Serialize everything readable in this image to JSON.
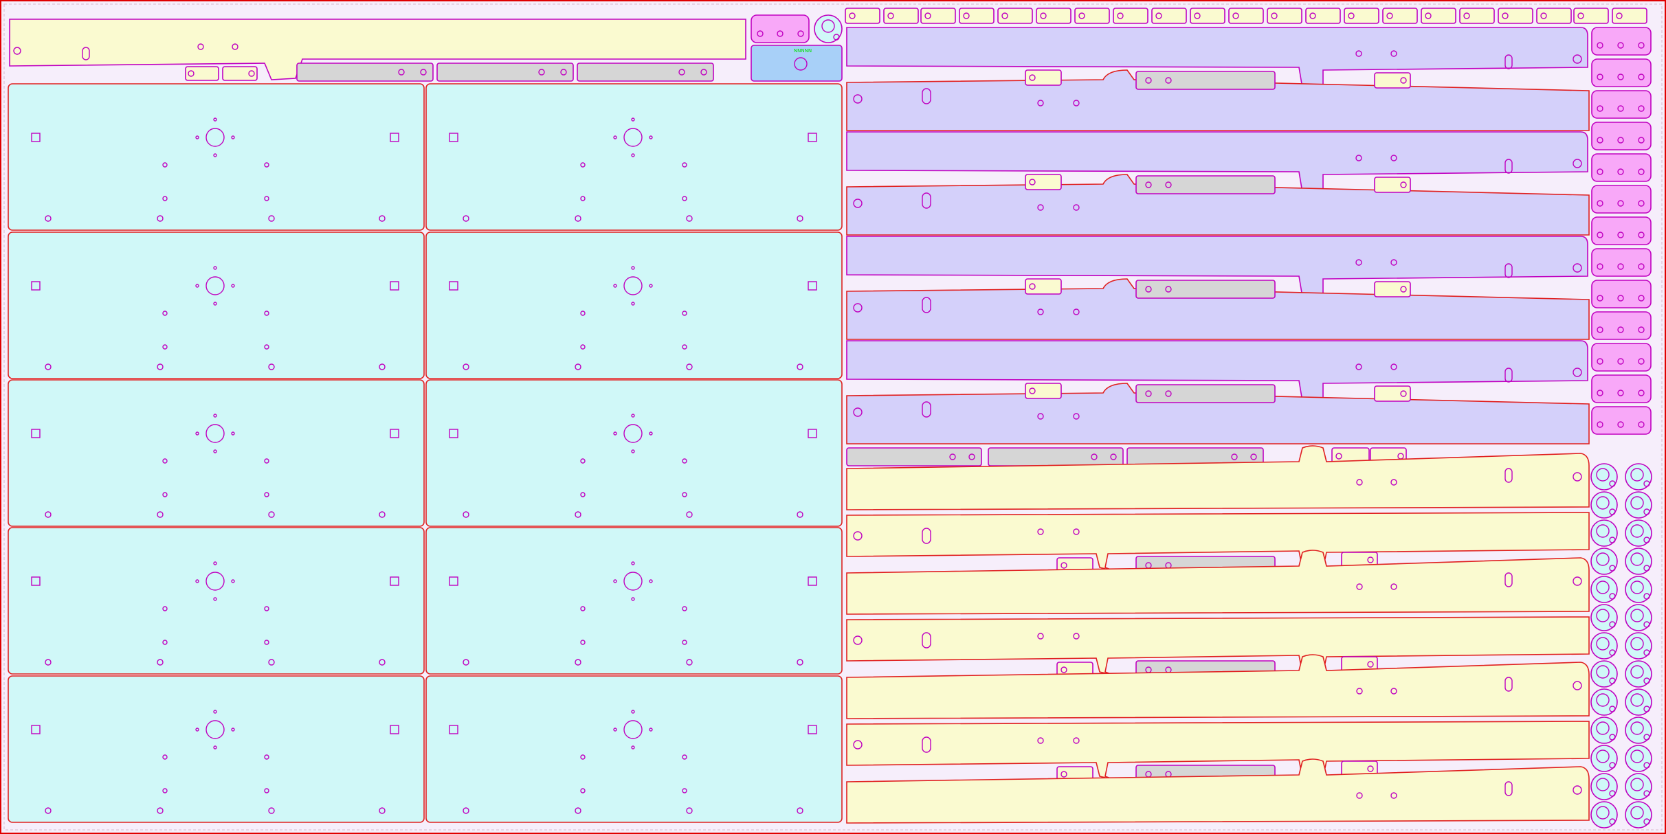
{
  "canvas": {
    "label_text": "NNNNN"
  },
  "colors": {
    "sheet_bg": "#f6eefb",
    "sheet_border": "#e00000",
    "sheet_dash": "#d8b8cc",
    "part_outline": "#e02020",
    "hole": "#c000c0",
    "cyan_fill": "#d0f8f8",
    "lavender_fill": "#d4d0fa",
    "yellow_fill": "#fafad0",
    "gray_fill": "#d6d6d6",
    "pink_fill": "#f8a8f8",
    "blue_fill": "#a8d0f8",
    "label_green": "#00e000"
  },
  "parts": {
    "plate_count": 10,
    "long_bar_count": 16,
    "pink_block_count": 13,
    "gear_count": 26,
    "top_tab_count": 21
  }
}
